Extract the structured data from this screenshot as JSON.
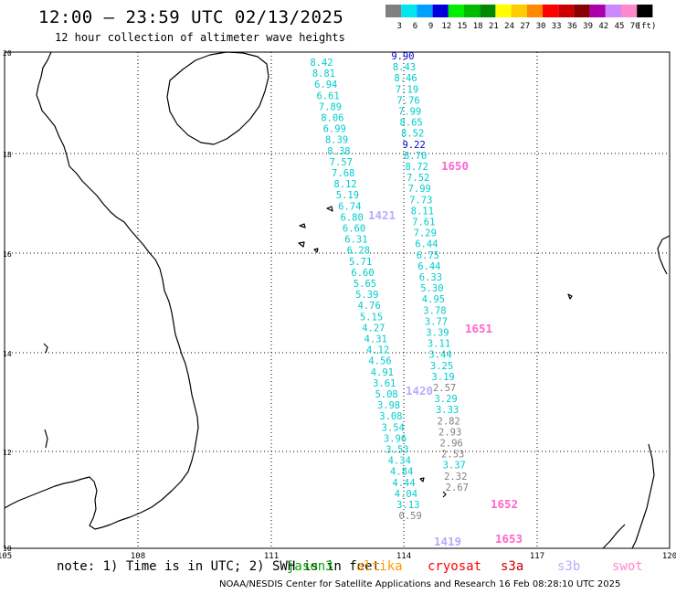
{
  "header": {
    "title": "12:00 – 23:59 UTC 02/13/2025",
    "subtitle": "12 hour collection of altimeter wave heights"
  },
  "colorbar": {
    "unit": "(ft)",
    "bins": [
      {
        "label": "3",
        "color": "#808080"
      },
      {
        "label": "6",
        "color": "#00e5ee"
      },
      {
        "label": "9",
        "color": "#00a0ff"
      },
      {
        "label": "12",
        "color": "#0000dd"
      },
      {
        "label": "15",
        "color": "#00ee00"
      },
      {
        "label": "18",
        "color": "#00bb00"
      },
      {
        "label": "21",
        "color": "#008800"
      },
      {
        "label": "24",
        "color": "#ffff00"
      },
      {
        "label": "27",
        "color": "#ffcc00"
      },
      {
        "label": "30",
        "color": "#ff8800"
      },
      {
        "label": "33",
        "color": "#ff0000"
      },
      {
        "label": "36",
        "color": "#cc0000"
      },
      {
        "label": "39",
        "color": "#880000"
      },
      {
        "label": "42",
        "color": "#aa00aa"
      },
      {
        "label": "45",
        "color": "#cc88ff"
      },
      {
        "label": "70",
        "color": "#ff88cc"
      },
      {
        "label": "",
        "color": "#000000"
      }
    ]
  },
  "map": {
    "lat_labels": [
      "20",
      "18",
      "16",
      "14",
      "12",
      "10"
    ],
    "lon_labels": [
      "105",
      "108",
      "111",
      "114",
      "117",
      "120"
    ],
    "tracks": [
      {
        "id": "track-a",
        "start": [
          352,
          68
        ],
        "step": [
          2.37,
          12.1
        ],
        "color": "#00cccc",
        "values": [
          "8.42",
          "8.81",
          "6.94",
          "6.61",
          "7.89",
          "8.06",
          "6.99",
          "8.39",
          "8.38",
          "7.57",
          "7.68",
          "8.12",
          "5.19",
          "6.74",
          "6.80",
          "6.60",
          "6.31",
          "6.28",
          "5.71",
          "6.60",
          "5.65",
          "5.39",
          "4.76",
          "5.15",
          "4.27",
          "4.31",
          "4.12",
          "4.56",
          "4.91",
          "3.61",
          "5.08",
          "3.98",
          "3.08",
          "3.54",
          "3.96",
          "3.53",
          "4.34",
          "4.84",
          "4.44",
          "4.04",
          "3.13",
          "0.59"
        ],
        "overrides": {
          "41": "#808080"
        }
      },
      {
        "id": "track-b",
        "start": [
          441,
          61
        ],
        "step": [
          1.52,
          12.1
        ],
        "color": "#00cccc",
        "values": [
          "9.90",
          "8.43",
          "8.46",
          "7.19",
          "7.76",
          "7.99",
          "8.65",
          "8.52",
          "9.22",
          "8.70",
          "8.72",
          "7.52",
          "7.99",
          "7.73",
          "8.11",
          "7.61",
          "7.29",
          "6.44",
          "6.75",
          "6.44",
          "6.33",
          "5.30",
          "4.95",
          "3.78",
          "3.77",
          "3.39",
          "3.11",
          "3.44",
          "3.25",
          "3.19",
          "2.57",
          "3.29",
          "3.33",
          "2.82",
          "2.93",
          "2.96",
          "2.53",
          "3.37",
          "2.32",
          "2.67"
        ],
        "overrides": {
          "0": "#0000cc",
          "8": "#0000cc",
          "30": "#808080",
          "33": "#808080",
          "34": "#808080",
          "35": "#808080",
          "36": "#808080",
          "38": "#808080",
          "39": "#808080"
        }
      }
    ],
    "time_labels": [
      {
        "text": "1650",
        "x": 498,
        "y": 186,
        "color": "#ff66cc"
      },
      {
        "text": "1421",
        "x": 418,
        "y": 240,
        "color": "#bbaaff"
      },
      {
        "text": "1651",
        "x": 524,
        "y": 364,
        "color": "#ff66cc"
      },
      {
        "text": "1420",
        "x": 459,
        "y": 432,
        "color": "#bbaaff"
      },
      {
        "text": "1652",
        "x": 552,
        "y": 556,
        "color": "#ff66cc"
      },
      {
        "text": "1653",
        "x": 557,
        "y": 594,
        "color": "#ff66cc"
      },
      {
        "text": "1419",
        "x": 490,
        "y": 597,
        "color": "#bbaaff"
      }
    ]
  },
  "legend": {
    "note": "note: 1) Time is in UTC; 2) SWH is in feet",
    "satellites": [
      {
        "name": "jason3",
        "color": "#00aa00"
      },
      {
        "name": "altika",
        "color": "#ff9900"
      },
      {
        "name": "cryosat",
        "color": "#ff0000"
      },
      {
        "name": "s3a",
        "color": "#cc0000"
      },
      {
        "name": "s3b",
        "color": "#bbaaff"
      },
      {
        "name": "swot",
        "color": "#ff88cc"
      }
    ],
    "footer": "NOAA/NESDIS Center for Satellite Applications and Research    16 Feb 08:28:10 UTC 2025"
  }
}
